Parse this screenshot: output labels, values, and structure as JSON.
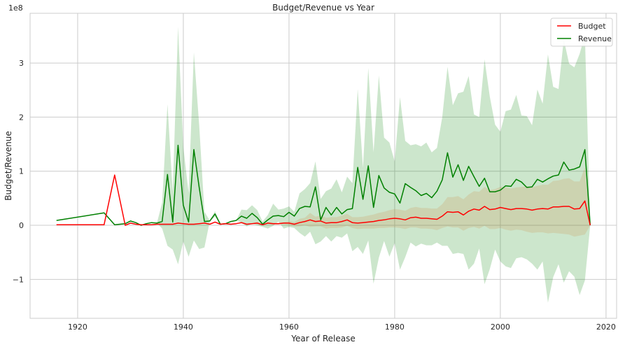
{
  "chart_data": {
    "type": "line",
    "title": "Budget/Revenue vs Year",
    "xlabel": "Year of Release",
    "ylabel": "Budget/Revenue",
    "offset_text": "1e8",
    "xlim": [
      1911,
      2022
    ],
    "ylim": [
      -1.72,
      3.92
    ],
    "x_ticks": [
      1920,
      1940,
      1960,
      1980,
      2000,
      2020
    ],
    "x_tick_labels": [
      "1920",
      "1940",
      "1960",
      "1980",
      "2000",
      "2020"
    ],
    "y_ticks": [
      -1,
      0,
      1,
      2,
      3
    ],
    "y_tick_labels": [
      "−1",
      "0",
      "1",
      "2",
      "3"
    ],
    "grid": true,
    "legend_position": "top-right",
    "series": [
      {
        "name": "Budget",
        "color": "#ff0000",
        "band_color": "#cd853f",
        "x": [
          1916,
          1925,
          1927,
          1929,
          1930,
          1931,
          1932,
          1933,
          1934,
          1935,
          1936,
          1937,
          1938,
          1939,
          1940,
          1941,
          1942,
          1943,
          1944,
          1945,
          1946,
          1947,
          1948,
          1949,
          1950,
          1951,
          1952,
          1953,
          1954,
          1955,
          1956,
          1957,
          1958,
          1959,
          1960,
          1961,
          1962,
          1963,
          1964,
          1965,
          1966,
          1967,
          1968,
          1969,
          1970,
          1971,
          1972,
          1973,
          1974,
          1975,
          1976,
          1977,
          1978,
          1979,
          1980,
          1981,
          1982,
          1983,
          1984,
          1985,
          1986,
          1987,
          1988,
          1989,
          1990,
          1991,
          1992,
          1993,
          1994,
          1995,
          1996,
          1997,
          1998,
          1999,
          2000,
          2001,
          2002,
          2003,
          2004,
          2005,
          2006,
          2007,
          2008,
          2009,
          2010,
          2011,
          2012,
          2013,
          2014,
          2015,
          2016,
          2017
        ],
        "values": [
          0.01,
          0.01,
          0.93,
          0.0,
          0.04,
          0.02,
          0.01,
          0.01,
          0.01,
          0.02,
          0.02,
          0.02,
          0.02,
          0.04,
          0.03,
          0.02,
          0.02,
          0.03,
          0.04,
          0.02,
          0.06,
          0.02,
          0.03,
          0.02,
          0.03,
          0.05,
          0.02,
          0.03,
          0.04,
          0.01,
          0.04,
          0.03,
          0.03,
          0.04,
          0.04,
          0.02,
          0.05,
          0.07,
          0.1,
          0.07,
          0.08,
          0.04,
          0.05,
          0.05,
          0.07,
          0.1,
          0.05,
          0.04,
          0.05,
          0.06,
          0.07,
          0.09,
          0.1,
          0.12,
          0.13,
          0.12,
          0.1,
          0.14,
          0.15,
          0.13,
          0.13,
          0.12,
          0.11,
          0.17,
          0.25,
          0.24,
          0.25,
          0.19,
          0.26,
          0.3,
          0.28,
          0.35,
          0.29,
          0.3,
          0.33,
          0.31,
          0.29,
          0.31,
          0.31,
          0.3,
          0.28,
          0.3,
          0.31,
          0.3,
          0.34,
          0.34,
          0.35,
          0.35,
          0.3,
          0.31,
          0.45,
          0.0
        ],
        "band_lower": [
          0.01,
          0.01,
          0.93,
          0.0,
          0.04,
          0.02,
          0.01,
          0.01,
          0.01,
          0.02,
          0.02,
          0.02,
          0.02,
          0.04,
          0.03,
          0.02,
          0.02,
          0.03,
          0.04,
          0.02,
          0.06,
          0.02,
          0.03,
          0.02,
          0.03,
          0.03,
          0.01,
          0.02,
          0.02,
          0.0,
          0.02,
          0.01,
          0.01,
          0.02,
          0.0,
          -0.02,
          -0.02,
          0.0,
          -0.03,
          -0.02,
          -0.02,
          -0.06,
          -0.05,
          -0.05,
          -0.04,
          -0.01,
          -0.05,
          -0.07,
          -0.06,
          -0.06,
          -0.06,
          -0.05,
          -0.05,
          -0.04,
          -0.04,
          -0.05,
          -0.07,
          -0.04,
          -0.04,
          -0.06,
          -0.06,
          -0.07,
          -0.09,
          -0.05,
          -0.02,
          -0.04,
          -0.04,
          -0.1,
          -0.05,
          -0.03,
          -0.06,
          -0.01,
          -0.07,
          -0.07,
          -0.05,
          -0.08,
          -0.1,
          -0.08,
          -0.09,
          -0.12,
          -0.14,
          -0.13,
          -0.13,
          -0.15,
          -0.14,
          -0.15,
          -0.16,
          -0.17,
          -0.21,
          -0.19,
          -0.17,
          0.0
        ],
        "band_upper": [
          0.01,
          0.01,
          0.93,
          0.0,
          0.04,
          0.02,
          0.01,
          0.01,
          0.01,
          0.02,
          0.02,
          0.02,
          0.02,
          0.04,
          0.03,
          0.02,
          0.02,
          0.03,
          0.04,
          0.02,
          0.06,
          0.02,
          0.03,
          0.02,
          0.03,
          0.07,
          0.03,
          0.04,
          0.06,
          0.02,
          0.06,
          0.05,
          0.05,
          0.06,
          0.08,
          0.06,
          0.12,
          0.14,
          0.23,
          0.16,
          0.18,
          0.14,
          0.15,
          0.15,
          0.18,
          0.21,
          0.15,
          0.15,
          0.16,
          0.18,
          0.2,
          0.23,
          0.25,
          0.28,
          0.3,
          0.29,
          0.27,
          0.32,
          0.34,
          0.32,
          0.32,
          0.31,
          0.31,
          0.39,
          0.52,
          0.52,
          0.54,
          0.48,
          0.57,
          0.63,
          0.62,
          0.71,
          0.65,
          0.67,
          0.71,
          0.7,
          0.68,
          0.7,
          0.71,
          0.72,
          0.7,
          0.73,
          0.75,
          0.75,
          0.82,
          0.83,
          0.86,
          0.87,
          0.81,
          0.81,
          1.07,
          0.0
        ]
      },
      {
        "name": "Revenue",
        "color": "#008000",
        "band_color": "#008000",
        "x": [
          1916,
          1925,
          1927,
          1929,
          1930,
          1931,
          1932,
          1933,
          1934,
          1935,
          1936,
          1937,
          1938,
          1939,
          1940,
          1941,
          1942,
          1943,
          1944,
          1945,
          1946,
          1947,
          1948,
          1949,
          1950,
          1951,
          1952,
          1953,
          1954,
          1955,
          1956,
          1957,
          1958,
          1959,
          1960,
          1961,
          1962,
          1963,
          1964,
          1965,
          1966,
          1967,
          1968,
          1969,
          1970,
          1971,
          1972,
          1973,
          1974,
          1975,
          1976,
          1977,
          1978,
          1979,
          1980,
          1981,
          1982,
          1983,
          1984,
          1985,
          1986,
          1987,
          1988,
          1989,
          1990,
          1991,
          1992,
          1993,
          1994,
          1995,
          1996,
          1997,
          1998,
          1999,
          2000,
          2001,
          2002,
          2003,
          2004,
          2005,
          2006,
          2007,
          2008,
          2009,
          2010,
          2011,
          2012,
          2013,
          2014,
          2015,
          2016,
          2017
        ],
        "values": [
          0.09,
          0.23,
          0.01,
          0.03,
          0.08,
          0.05,
          0.0,
          0.03,
          0.05,
          0.04,
          0.07,
          0.94,
          0.06,
          1.48,
          0.37,
          0.06,
          1.4,
          0.7,
          0.07,
          0.08,
          0.21,
          0.02,
          0.03,
          0.07,
          0.09,
          0.17,
          0.13,
          0.22,
          0.14,
          0.02,
          0.1,
          0.17,
          0.18,
          0.16,
          0.24,
          0.17,
          0.31,
          0.35,
          0.34,
          0.71,
          0.1,
          0.33,
          0.19,
          0.33,
          0.21,
          0.29,
          0.31,
          1.07,
          0.48,
          1.1,
          0.33,
          0.92,
          0.69,
          0.61,
          0.58,
          0.41,
          0.77,
          0.7,
          0.64,
          0.55,
          0.59,
          0.51,
          0.63,
          0.84,
          1.34,
          0.89,
          1.12,
          0.83,
          1.09,
          0.9,
          0.72,
          0.87,
          0.62,
          0.62,
          0.65,
          0.73,
          0.72,
          0.85,
          0.8,
          0.7,
          0.71,
          0.85,
          0.8,
          0.86,
          0.91,
          0.93,
          1.17,
          1.02,
          1.04,
          1.08,
          1.4,
          0.0
        ],
        "band_lower": [
          0.09,
          0.23,
          0.01,
          0.03,
          0.08,
          0.05,
          0.0,
          0.03,
          0.05,
          0.04,
          -0.06,
          -0.38,
          -0.45,
          -0.72,
          -0.3,
          -0.58,
          -0.28,
          -0.44,
          -0.41,
          0.07,
          0.16,
          0.02,
          0.03,
          0.07,
          0.09,
          0.05,
          -0.02,
          0.03,
          0.0,
          -0.03,
          -0.06,
          -0.01,
          0.07,
          -0.06,
          -0.03,
          -0.05,
          -0.14,
          -0.21,
          -0.12,
          -0.35,
          -0.3,
          -0.2,
          -0.3,
          -0.2,
          -0.23,
          -0.15,
          -0.48,
          -0.4,
          -0.53,
          -0.28,
          -1.08,
          -0.6,
          -0.29,
          -0.58,
          -0.33,
          -0.82,
          -0.59,
          -0.32,
          -0.39,
          -0.34,
          -0.37,
          -0.37,
          -0.32,
          -0.38,
          -0.38,
          -0.53,
          -0.51,
          -0.53,
          -0.82,
          -0.71,
          -0.43,
          -1.09,
          -0.81,
          -0.45,
          -0.67,
          -0.76,
          -0.79,
          -0.61,
          -0.59,
          -0.63,
          -0.71,
          -0.82,
          -0.67,
          -1.43,
          -0.96,
          -0.72,
          -1.06,
          -0.85,
          -0.95,
          -1.29,
          -1.02,
          0.0
        ],
        "band_upper": [
          0.09,
          0.23,
          0.01,
          0.03,
          0.08,
          0.05,
          0.0,
          0.03,
          0.05,
          0.04,
          0.42,
          2.24,
          0.62,
          3.67,
          1.45,
          0.6,
          3.2,
          1.85,
          0.25,
          0.09,
          0.26,
          0.02,
          0.03,
          0.07,
          0.09,
          0.29,
          0.28,
          0.37,
          0.28,
          0.07,
          0.19,
          0.4,
          0.29,
          0.31,
          0.35,
          0.25,
          0.59,
          0.67,
          0.78,
          1.18,
          0.49,
          0.63,
          0.68,
          0.85,
          0.61,
          0.9,
          0.78,
          2.52,
          1.06,
          2.91,
          1.35,
          2.77,
          1.62,
          1.53,
          1.18,
          2.37,
          1.56,
          1.48,
          1.5,
          1.46,
          1.53,
          1.35,
          1.43,
          2.0,
          2.93,
          2.22,
          2.44,
          2.47,
          2.76,
          2.05,
          2.0,
          3.07,
          2.38,
          1.86,
          1.73,
          2.11,
          2.14,
          2.41,
          2.03,
          2.02,
          1.85,
          2.51,
          2.25,
          3.16,
          2.56,
          2.52,
          3.44,
          2.99,
          2.92,
          3.17,
          3.52,
          0.0
        ]
      }
    ]
  }
}
